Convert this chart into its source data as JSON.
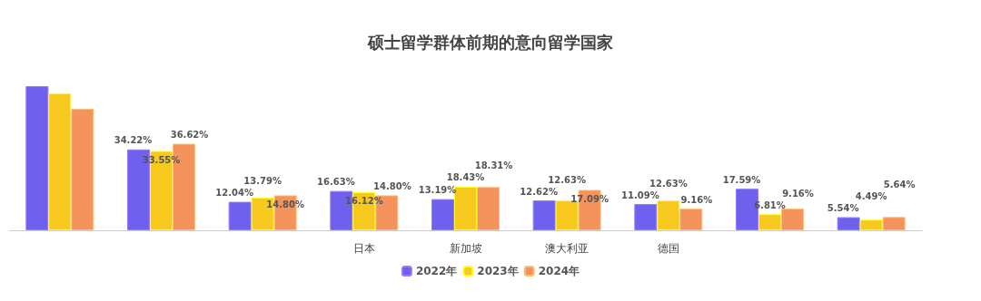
{
  "chart_data": {
    "type": "bar",
    "title": "硕士留学群体前期的意向留学国家",
    "categories": [
      null,
      null,
      null,
      "日本",
      "新加坡",
      "澳大利亚",
      "德国",
      null,
      null
    ],
    "series": [
      {
        "name": "2022年",
        "color": "#6f60ee",
        "values": [
          61,
          34.22,
          12.04,
          16.63,
          13.19,
          12.62,
          11.09,
          17.59,
          5.54
        ],
        "value_labels": [
          null,
          "34.22%",
          "12.04%",
          "16.63%",
          "13.19%",
          "12.62%",
          "11.09%",
          "17.59%",
          "5.54%"
        ]
      },
      {
        "name": "2023年",
        "color": "#f7c81e",
        "values": [
          58,
          33.55,
          13.79,
          16.12,
          18.43,
          12.63,
          12.63,
          6.81,
          4.49
        ],
        "value_labels": [
          null,
          "33.55%",
          "13.79%",
          "16.12%",
          "18.43%",
          "12.63%",
          "12.63%",
          "6.81%",
          "4.49%"
        ]
      },
      {
        "name": "2024年",
        "color": "#f4935b",
        "values": [
          51.4,
          36.62,
          14.8,
          14.8,
          18.31,
          17.09,
          9.16,
          9.16,
          5.64
        ],
        "value_labels": [
          null,
          "36.62%",
          "14.80%",
          "14.80%",
          "18.31%",
          "17.09%",
          "9.16%",
          "9.16%",
          "5.64%"
        ]
      }
    ],
    "legend": "bottom",
    "grid": false
  }
}
